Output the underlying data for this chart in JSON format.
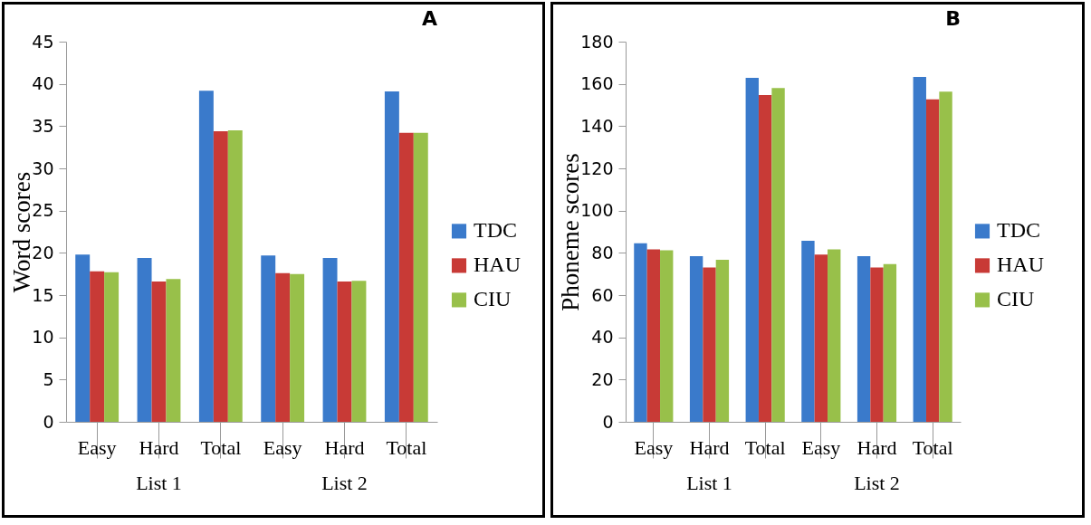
{
  "chart_data": [
    {
      "type": "bar",
      "title": "A",
      "ylabel": "Word scores",
      "categories": [
        "Easy",
        "Hard",
        "Total",
        "Easy",
        "Hard",
        "Total"
      ],
      "series": [
        {
          "name": "TDC",
          "color": "#3a7acb",
          "values": [
            19.8,
            19.4,
            39.2,
            19.7,
            19.4,
            39.1
          ]
        },
        {
          "name": "HAU",
          "color": "#c83a36",
          "values": [
            17.8,
            16.6,
            34.4,
            17.6,
            16.6,
            34.2
          ]
        },
        {
          "name": "CIU",
          "color": "#98c04a",
          "values": [
            17.7,
            16.9,
            34.5,
            17.5,
            16.7,
            34.2
          ]
        }
      ],
      "ylim": [
        0,
        45
      ],
      "yticks": [
        0,
        5,
        10,
        15,
        20,
        25,
        30,
        35,
        40,
        45
      ],
      "grid": false,
      "legend": "right",
      "annotations": [
        "List 1",
        "List 2"
      ]
    },
    {
      "type": "bar",
      "title": "B",
      "ylabel": "Phoneme scores",
      "categories": [
        "Easy",
        "Hard",
        "Total",
        "Easy",
        "Hard",
        "Total"
      ],
      "series": [
        {
          "name": "TDC",
          "color": "#3a7acb",
          "values": [
            84.5,
            78.4,
            162.9,
            85.7,
            78.4,
            163.3
          ]
        },
        {
          "name": "HAU",
          "color": "#c83a36",
          "values": [
            81.6,
            73.1,
            154.7,
            79.2,
            73.1,
            152.7
          ]
        },
        {
          "name": "CIU",
          "color": "#98c04a",
          "values": [
            81.2,
            76.7,
            158,
            81.6,
            74.7,
            156.3
          ]
        }
      ],
      "ylim": [
        0,
        180
      ],
      "yticks": [
        0,
        20,
        40,
        60,
        80,
        100,
        120,
        140,
        160,
        180
      ],
      "grid": false,
      "legend": "right",
      "annotations": [
        "List 1",
        "List 2"
      ]
    }
  ]
}
